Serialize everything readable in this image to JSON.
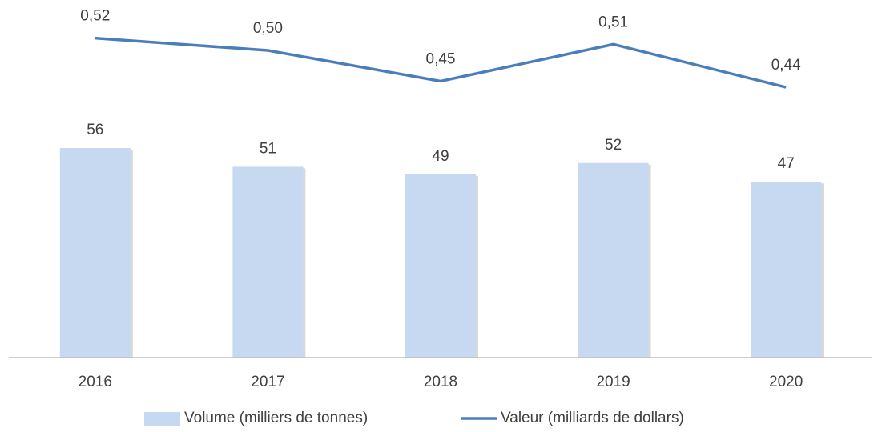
{
  "chart_data": {
    "type": "bar",
    "categories": [
      "2016",
      "2017",
      "2018",
      "2019",
      "2020"
    ],
    "series": [
      {
        "name": "Volume (milliers de tonnes)",
        "type": "bar",
        "color": "#c6d9f1",
        "values": [
          56,
          51,
          49,
          52,
          47
        ]
      },
      {
        "name": "Valeur (milliards de dollars)",
        "type": "line",
        "axis": "y2",
        "color": "#4a7ebb",
        "values": [
          0.52,
          0.5,
          0.45,
          0.51,
          0.44
        ],
        "value_labels": [
          "0,52",
          "0,50",
          "0,45",
          "0,51",
          "0,44"
        ]
      }
    ],
    "ylim": [
      0,
      87
    ],
    "y2lim": [
      0,
      0.53
    ],
    "legend": "bottom"
  }
}
